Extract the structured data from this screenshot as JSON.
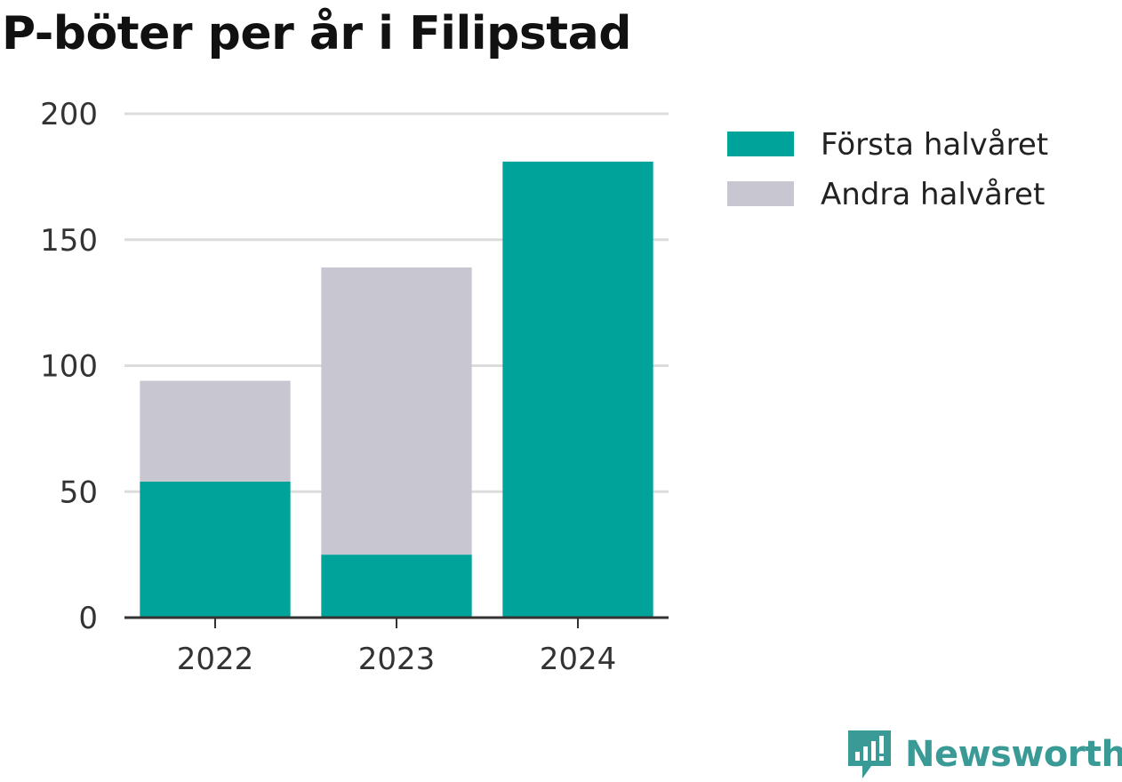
{
  "chart_data": {
    "type": "bar",
    "stacked": true,
    "title": "P-böter per år i Filipstad",
    "categories": [
      "2022",
      "2023",
      "2024"
    ],
    "series": [
      {
        "name": "Första halvåret",
        "color": "#00a39a",
        "values": [
          54,
          25,
          181
        ]
      },
      {
        "name": "Andra halvåret",
        "color": "#c8c7d1",
        "values": [
          40,
          114,
          0
        ]
      }
    ],
    "ylim": [
      0,
      200
    ],
    "yticks": [
      "0",
      "50",
      "100",
      "150",
      "200"
    ],
    "ytick_values": [
      0,
      50,
      100,
      150,
      200
    ],
    "grid": true,
    "legend_position": "right"
  },
  "logo": {
    "text": "Newsworthy",
    "icon": "newsworthy-chart-bubble-icon",
    "color": "#3a9a96"
  }
}
